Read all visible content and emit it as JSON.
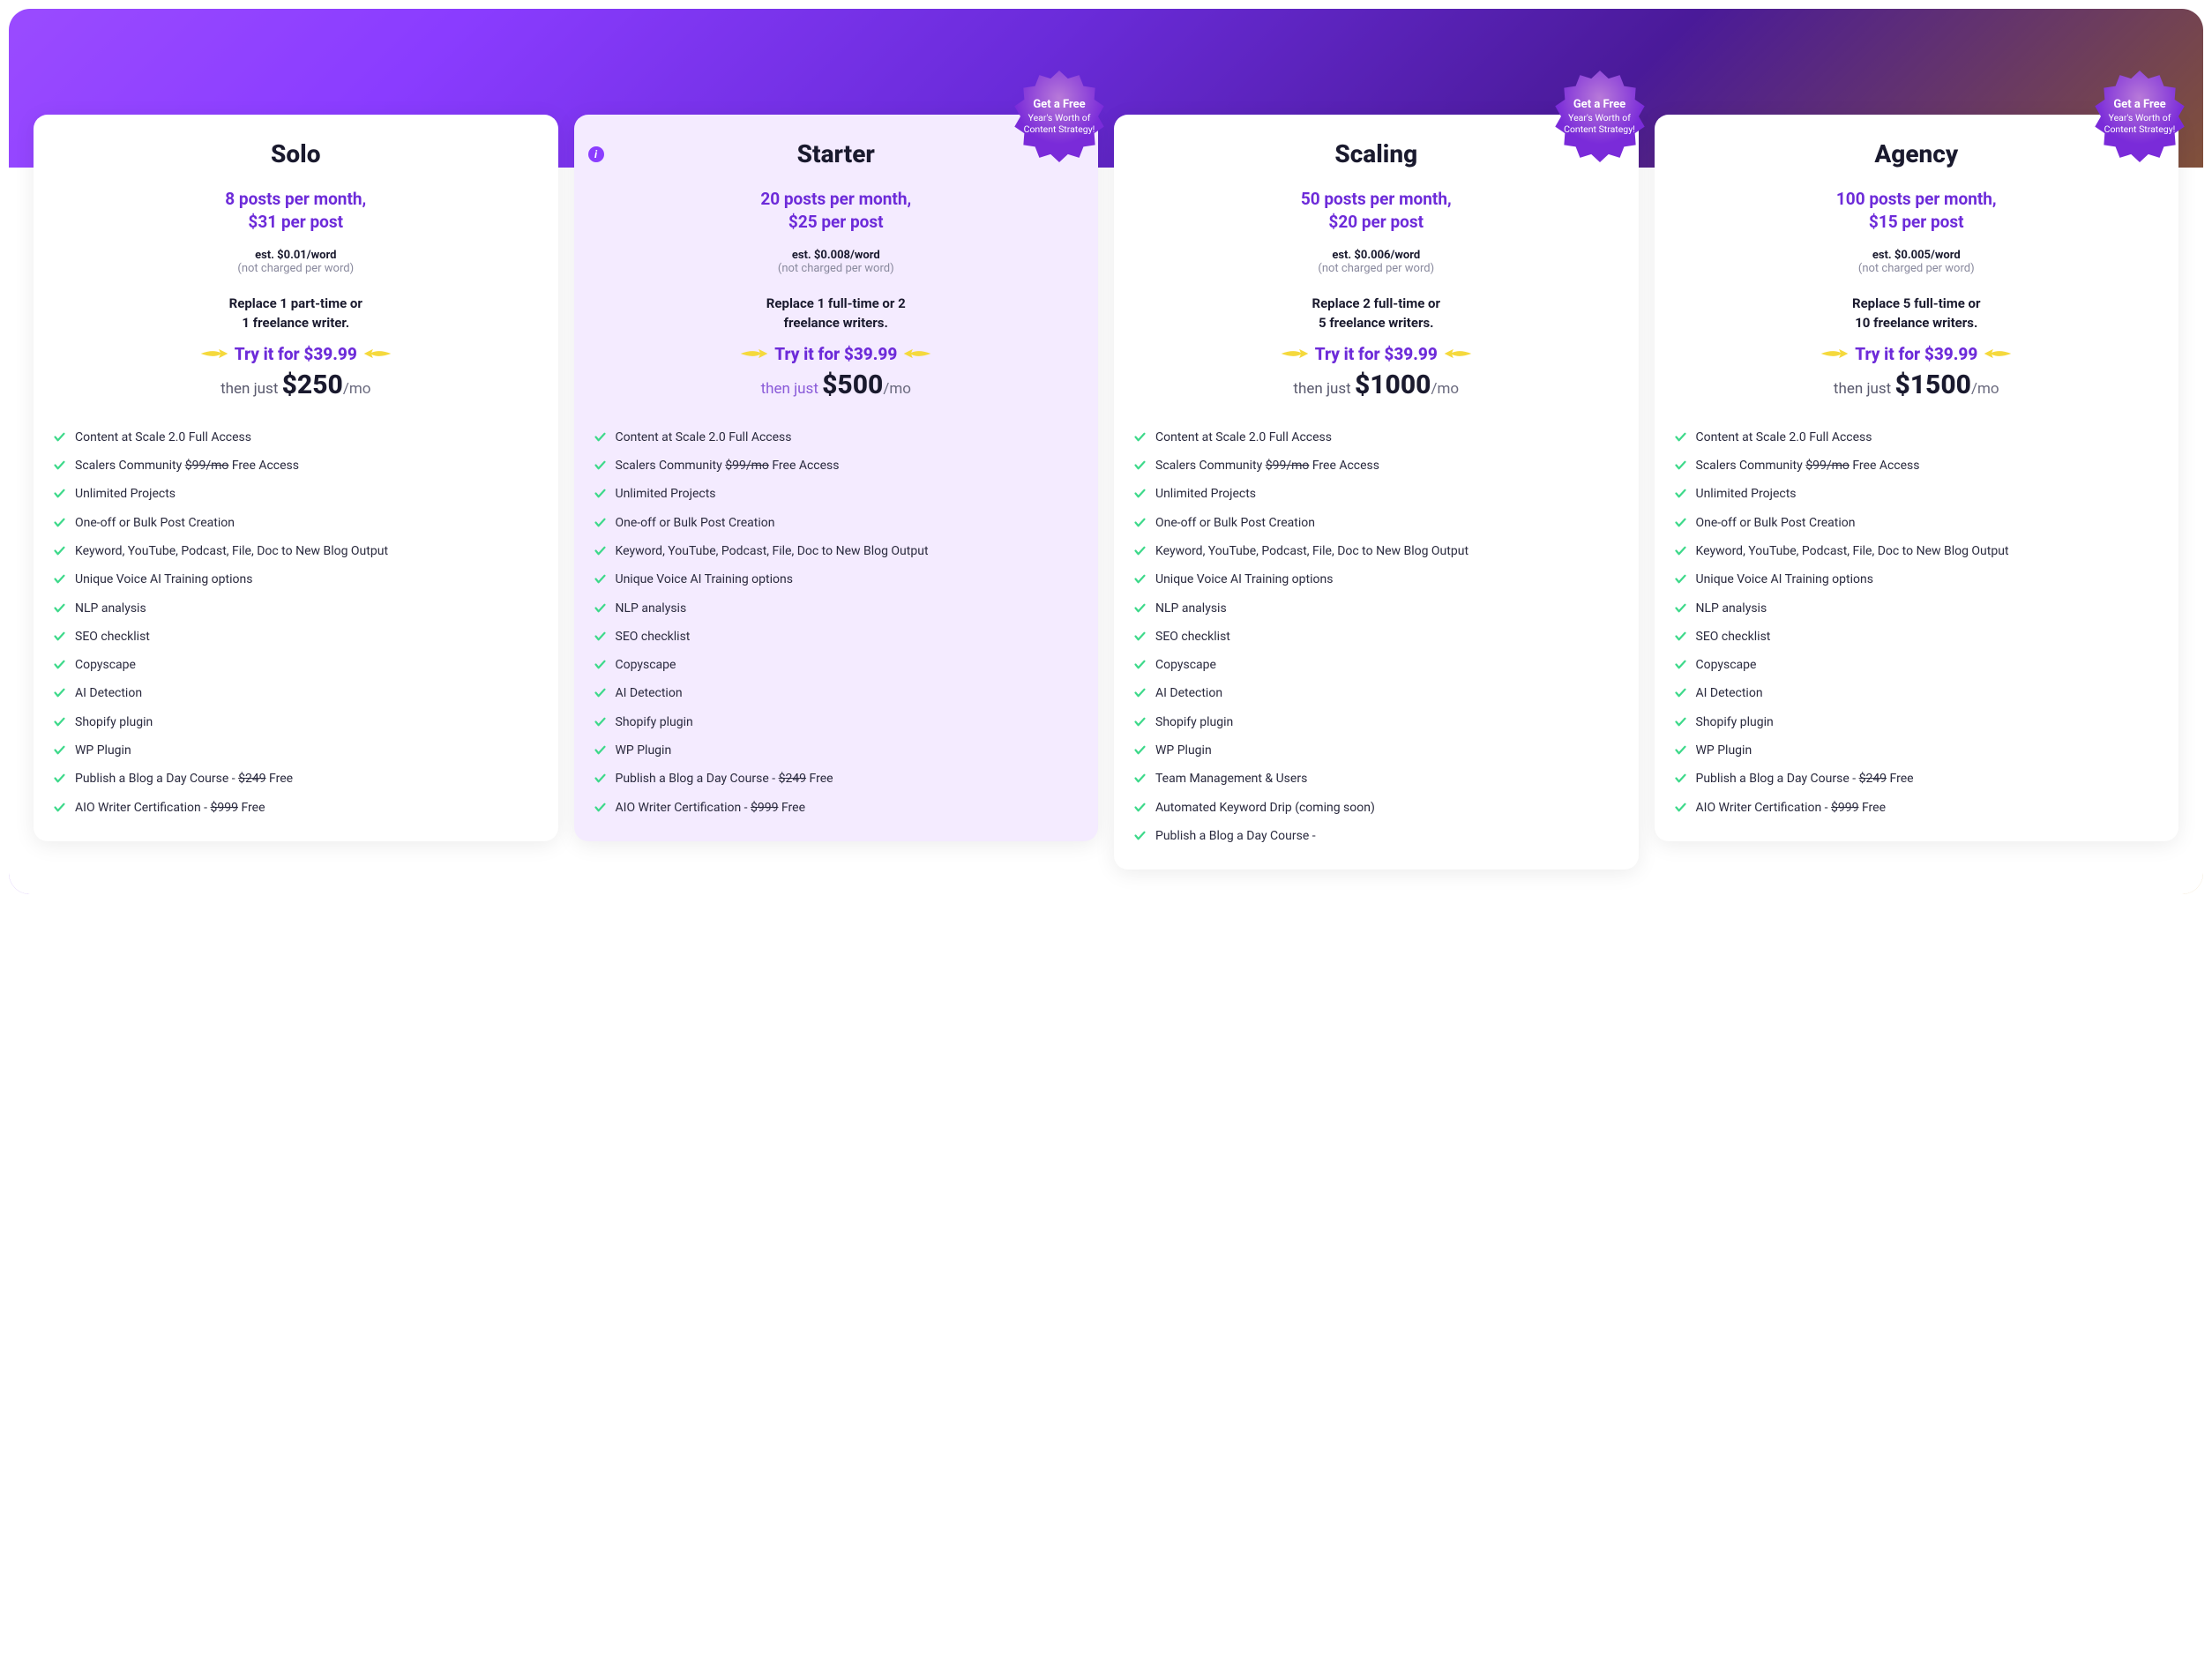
{
  "colors": {
    "accent": "#6d2bd9",
    "check": "#3dd98a",
    "arrow": "#f5d93c",
    "badge_grad_top": "#b87ad9",
    "badge_grad_bot": "#7a2bd9",
    "text_dark": "#1a1a2e",
    "text_mute": "#8a8a9e"
  },
  "badge_text": {
    "line1": "Get a Free",
    "line2": "Year's Worth of Content Strategy!"
  },
  "shared": {
    "try_label": "Try it for $39.99",
    "then_prefix": "then just ",
    "est_note": "(not charged per word)"
  },
  "plans": [
    {
      "name": "Solo",
      "highlight": false,
      "has_badge": false,
      "has_info": false,
      "posts_line1": "8 posts per month,",
      "posts_line2": "$31 per post",
      "est": "est. $0.01/word",
      "replace_line1": "Replace 1 part-time or",
      "replace_line2": "1 freelance writer.",
      "then_price": "$250",
      "then_mo": "/mo",
      "features": [
        {
          "text": "Content at Scale 2.0 Full Access"
        },
        {
          "pre": "Scalers Community ",
          "strike": "$99/mo",
          "post": " Free Access"
        },
        {
          "text": "Unlimited Projects"
        },
        {
          "text": "One-off or Bulk Post Creation"
        },
        {
          "text": "Keyword, YouTube, Podcast, File, Doc to New Blog Output"
        },
        {
          "text": "Unique Voice AI Training options"
        },
        {
          "text": "NLP analysis"
        },
        {
          "text": "SEO checklist"
        },
        {
          "text": "Copyscape"
        },
        {
          "text": "AI Detection"
        },
        {
          "text": "Shopify plugin"
        },
        {
          "text": "WP Plugin"
        },
        {
          "pre": "Publish a Blog a Day Course - ",
          "strike": "$249",
          "post": " Free"
        },
        {
          "pre": "AIO Writer Certification - ",
          "strike": "$999",
          "post": " Free"
        }
      ]
    },
    {
      "name": "Starter",
      "highlight": true,
      "has_badge": true,
      "has_info": true,
      "posts_line1": "20 posts per month,",
      "posts_line2": "$25 per post",
      "est": "est. $0.008/word",
      "replace_line1": "Replace 1 full-time or 2",
      "replace_line2": "freelance writers.",
      "then_price": "$500",
      "then_mo": "/mo",
      "features": [
        {
          "text": "Content at Scale 2.0 Full Access"
        },
        {
          "pre": "Scalers Community ",
          "strike": "$99/mo",
          "post": " Free Access"
        },
        {
          "text": "Unlimited Projects"
        },
        {
          "text": "One-off or Bulk Post Creation"
        },
        {
          "text": "Keyword, YouTube, Podcast, File, Doc to New Blog Output"
        },
        {
          "text": "Unique Voice AI Training options"
        },
        {
          "text": "NLP analysis"
        },
        {
          "text": "SEO checklist"
        },
        {
          "text": "Copyscape"
        },
        {
          "text": "AI Detection"
        },
        {
          "text": "Shopify plugin"
        },
        {
          "text": "WP Plugin"
        },
        {
          "pre": "Publish a Blog a Day Course - ",
          "strike": "$249",
          "post": " Free"
        },
        {
          "pre": "AIO Writer Certification - ",
          "strike": "$999",
          "post": " Free"
        }
      ]
    },
    {
      "name": "Scaling",
      "highlight": false,
      "has_badge": true,
      "has_info": false,
      "posts_line1": "50 posts per month,",
      "posts_line2": "$20 per post",
      "est": "est. $0.006/word",
      "replace_line1": "Replace 2 full-time or",
      "replace_line2": "5 freelance writers.",
      "then_price": "$1000",
      "then_mo": "/mo",
      "features": [
        {
          "text": "Content at Scale 2.0 Full Access"
        },
        {
          "pre": "Scalers Community ",
          "strike": "$99/mo",
          "post": " Free Access"
        },
        {
          "text": "Unlimited Projects"
        },
        {
          "text": "One-off or Bulk Post Creation"
        },
        {
          "text": "Keyword, YouTube, Podcast, File, Doc to New Blog Output"
        },
        {
          "text": "Unique Voice AI Training options"
        },
        {
          "text": "NLP analysis"
        },
        {
          "text": "SEO checklist"
        },
        {
          "text": "Copyscape"
        },
        {
          "text": "AI Detection"
        },
        {
          "text": "Shopify plugin"
        },
        {
          "text": "WP Plugin"
        },
        {
          "text": "Team Management & Users"
        },
        {
          "text": "Automated Keyword Drip (coming soon)"
        },
        {
          "text": "Publish a Blog a Day Course -"
        }
      ]
    },
    {
      "name": "Agency",
      "highlight": false,
      "has_badge": true,
      "has_info": false,
      "posts_line1": "100 posts per month,",
      "posts_line2": "$15 per post",
      "est": "est. $0.005/word",
      "replace_line1": "Replace 5 full-time or",
      "replace_line2": "10 freelance writers.",
      "then_price": "$1500",
      "then_mo": "/mo",
      "features": [
        {
          "text": "Content at Scale 2.0 Full Access"
        },
        {
          "pre": "Scalers Community ",
          "strike": "$99/mo",
          "post": " Free Access"
        },
        {
          "text": "Unlimited Projects"
        },
        {
          "text": "One-off or Bulk Post Creation"
        },
        {
          "text": "Keyword, YouTube, Podcast, File, Doc to New Blog Output"
        },
        {
          "text": "Unique Voice AI Training options"
        },
        {
          "text": "NLP analysis"
        },
        {
          "text": "SEO checklist"
        },
        {
          "text": "Copyscape"
        },
        {
          "text": "AI Detection"
        },
        {
          "text": "Shopify plugin"
        },
        {
          "text": "WP Plugin"
        },
        {
          "pre": "Publish a Blog a Day Course - ",
          "strike": "$249",
          "post": " Free"
        },
        {
          "pre": "AIO Writer Certification - ",
          "strike": "$999",
          "post": " Free"
        }
      ]
    }
  ]
}
